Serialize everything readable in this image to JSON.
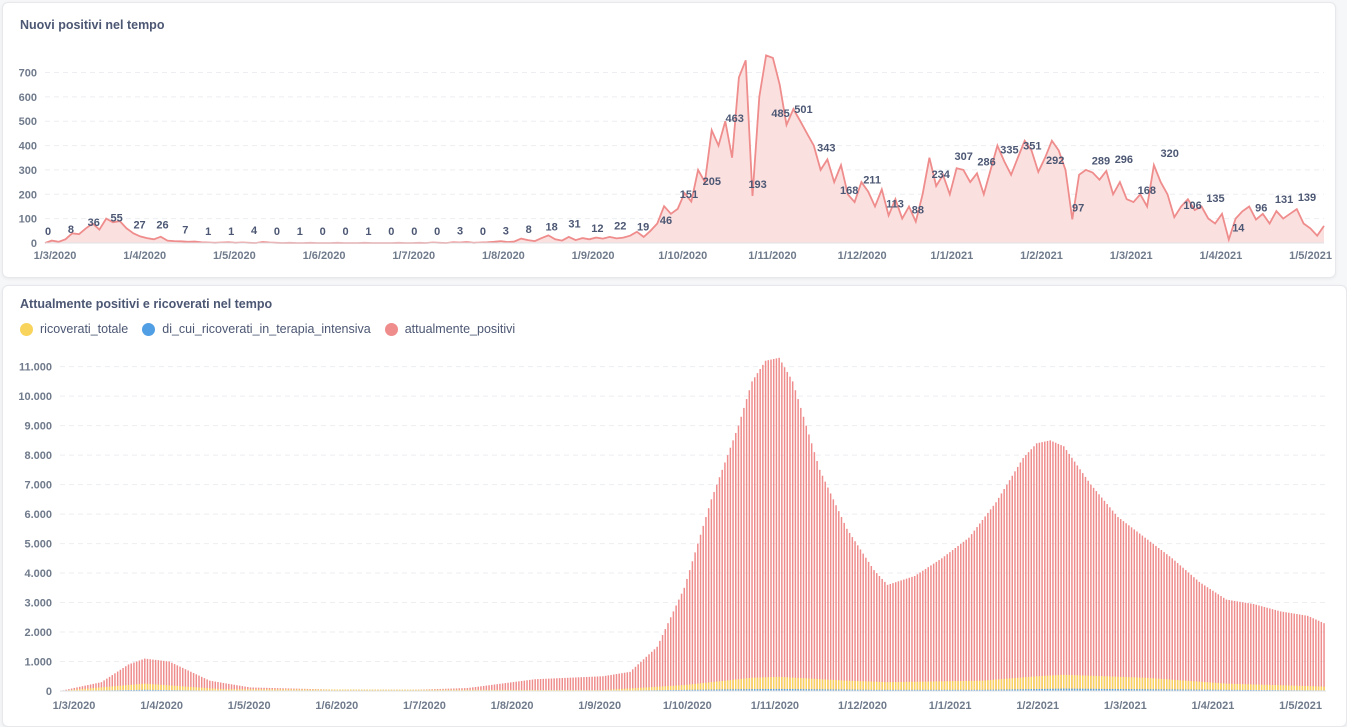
{
  "chart_data": [
    {
      "type": "area",
      "title": "Nuovi positivi nel tempo",
      "color": "#ef8c8c",
      "fill": "#fbe0e0",
      "yticks": [
        0,
        100,
        200,
        300,
        400,
        500,
        600,
        700
      ],
      "ylim": [
        0,
        780
      ],
      "xticks": [
        "1/3/2020",
        "1/4/2020",
        "1/5/2020",
        "1/6/2020",
        "1/7/2020",
        "1/8/2020",
        "1/9/2020",
        "1/10/2020",
        "1/11/2020",
        "1/12/2020",
        "1/1/2021",
        "1/2/2021",
        "1/3/2021",
        "1/4/2021",
        "1/5/2021"
      ],
      "series_values": [
        0,
        10,
        5,
        15,
        40,
        36,
        60,
        80,
        55,
        100,
        85,
        90,
        60,
        40,
        27,
        20,
        15,
        26,
        10,
        8,
        7,
        5,
        6,
        3,
        2,
        1,
        2,
        3,
        1,
        2,
        1,
        0,
        4,
        2,
        1,
        0,
        1,
        0,
        0,
        1,
        0,
        0,
        0,
        1,
        0,
        0,
        0,
        1,
        0,
        0,
        0,
        0,
        1,
        0,
        0,
        1,
        0,
        2,
        1,
        0,
        3,
        2,
        4,
        1,
        2,
        3,
        5,
        8,
        4,
        6,
        18,
        12,
        8,
        20,
        31,
        15,
        10,
        25,
        12,
        20,
        15,
        22,
        18,
        25,
        19,
        22,
        30,
        46,
        25,
        50,
        80,
        151,
        120,
        140,
        205,
        170,
        300,
        250,
        463,
        400,
        500,
        350,
        680,
        750,
        193,
        600,
        770,
        760,
        650,
        485,
        550,
        501,
        450,
        400,
        300,
        343,
        250,
        320,
        200,
        168,
        250,
        211,
        150,
        220,
        113,
        180,
        100,
        150,
        88,
        200,
        350,
        234,
        280,
        200,
        307,
        300,
        250,
        286,
        200,
        300,
        400,
        335,
        280,
        351,
        420,
        380,
        292,
        350,
        420,
        380,
        300,
        97,
        280,
        300,
        289,
        260,
        296,
        200,
        250,
        180,
        168,
        200,
        150,
        320,
        250,
        200,
        106,
        150,
        180,
        135,
        150,
        100,
        80,
        120,
        14,
        100,
        130,
        150,
        96,
        120,
        80,
        131,
        100,
        120,
        139,
        80,
        60,
        30,
        70
      ],
      "data_labels": [
        {
          "v": 0,
          "t": "0"
        },
        {
          "v": 8,
          "t": "8"
        },
        {
          "v": 36,
          "t": "36"
        },
        {
          "v": 55,
          "t": "55"
        },
        {
          "v": 27,
          "t": "27"
        },
        {
          "v": 26,
          "t": "26"
        },
        {
          "v": 7,
          "t": "7"
        },
        {
          "v": 1,
          "t": "1"
        },
        {
          "v": 1,
          "t": "1"
        },
        {
          "v": 4,
          "t": "4"
        },
        {
          "v": 0,
          "t": "0"
        },
        {
          "v": 1,
          "t": "1"
        },
        {
          "v": 0,
          "t": "0"
        },
        {
          "v": 0,
          "t": "0"
        },
        {
          "v": 1,
          "t": "1"
        },
        {
          "v": 0,
          "t": "0"
        },
        {
          "v": 0,
          "t": "0"
        },
        {
          "v": 0,
          "t": "0"
        },
        {
          "v": 3,
          "t": "3"
        },
        {
          "v": 0,
          "t": "0"
        },
        {
          "v": 3,
          "t": "3"
        },
        {
          "v": 8,
          "t": "8"
        },
        {
          "v": 18,
          "t": "18"
        },
        {
          "v": 31,
          "t": "31"
        },
        {
          "v": 12,
          "t": "12"
        },
        {
          "v": 22,
          "t": "22"
        },
        {
          "v": 19,
          "t": "19"
        },
        {
          "v": 46,
          "t": "46"
        },
        {
          "v": 151,
          "t": "151"
        },
        {
          "v": 205,
          "t": "205"
        },
        {
          "v": 463,
          "t": "463"
        },
        {
          "v": 193,
          "t": "193"
        },
        {
          "v": 485,
          "t": "485"
        },
        {
          "v": 501,
          "t": "501"
        },
        {
          "v": 343,
          "t": "343"
        },
        {
          "v": 168,
          "t": "168"
        },
        {
          "v": 211,
          "t": "211"
        },
        {
          "v": 113,
          "t": "113"
        },
        {
          "v": 88,
          "t": "88"
        },
        {
          "v": 234,
          "t": "234"
        },
        {
          "v": 307,
          "t": "307"
        },
        {
          "v": 286,
          "t": "286"
        },
        {
          "v": 335,
          "t": "335"
        },
        {
          "v": 351,
          "t": "351"
        },
        {
          "v": 292,
          "t": "292"
        },
        {
          "v": 97,
          "t": "97"
        },
        {
          "v": 289,
          "t": "289"
        },
        {
          "v": 296,
          "t": "296"
        },
        {
          "v": 168,
          "t": "168"
        },
        {
          "v": 320,
          "t": "320"
        },
        {
          "v": 106,
          "t": "106"
        },
        {
          "v": 135,
          "t": "135"
        },
        {
          "v": 14,
          "t": "14"
        },
        {
          "v": 96,
          "t": "96"
        },
        {
          "v": 131,
          "t": "131"
        },
        {
          "v": 139,
          "t": "139"
        }
      ]
    },
    {
      "type": "bar",
      "title": "Attualmente positivi e ricoverati nel tempo",
      "yticks": [
        "0",
        "1.000",
        "2.000",
        "3.000",
        "4.000",
        "5.000",
        "6.000",
        "7.000",
        "8.000",
        "9.000",
        "10.000",
        "11.000"
      ],
      "ylim": [
        0,
        11700
      ],
      "xticks": [
        "1/3/2020",
        "1/4/2020",
        "1/5/2020",
        "1/6/2020",
        "1/7/2020",
        "1/8/2020",
        "1/9/2020",
        "1/10/2020",
        "1/11/2020",
        "1/12/2020",
        "1/1/2021",
        "1/2/2021",
        "1/3/2021",
        "1/4/2021",
        "1/5/2021"
      ],
      "legend": [
        {
          "name": "ricoverati_totale",
          "color": "#f9d45c"
        },
        {
          "name": "di_cui_ricoverati_in_terapia_intensiva",
          "color": "#509ee3"
        },
        {
          "name": "attualmente_positivi",
          "color": "#ef8c8c"
        }
      ],
      "series": [
        {
          "name": "attualmente_positivi",
          "color": "#ef8c8c",
          "keypoints": [
            [
              0,
              5
            ],
            [
              15,
              300
            ],
            [
              25,
              900
            ],
            [
              31,
              1100
            ],
            [
              40,
              1000
            ],
            [
              55,
              350
            ],
            [
              70,
              120
            ],
            [
              100,
              50
            ],
            [
              130,
              40
            ],
            [
              150,
              100
            ],
            [
              175,
              400
            ],
            [
              200,
              500
            ],
            [
              210,
              650
            ],
            [
              220,
              1500
            ],
            [
              230,
              3500
            ],
            [
              240,
              6500
            ],
            [
              250,
              9000
            ],
            [
              255,
              10500
            ],
            [
              260,
              11200
            ],
            [
              265,
              11300
            ],
            [
              270,
              10500
            ],
            [
              280,
              7500
            ],
            [
              290,
              5500
            ],
            [
              300,
              4100
            ],
            [
              305,
              3600
            ],
            [
              315,
              3900
            ],
            [
              325,
              4500
            ],
            [
              335,
              5200
            ],
            [
              345,
              6400
            ],
            [
              355,
              7900
            ],
            [
              360,
              8400
            ],
            [
              365,
              8500
            ],
            [
              370,
              8300
            ],
            [
              380,
              7000
            ],
            [
              390,
              5900
            ],
            [
              400,
              5200
            ],
            [
              410,
              4500
            ],
            [
              420,
              3700
            ],
            [
              430,
              3100
            ],
            [
              440,
              2950
            ],
            [
              450,
              2700
            ],
            [
              460,
              2550
            ],
            [
              466,
              2300
            ]
          ]
        },
        {
          "name": "ricoverati_totale",
          "color": "#f9d45c",
          "keypoints": [
            [
              0,
              5
            ],
            [
              31,
              250
            ],
            [
              60,
              60
            ],
            [
              200,
              30
            ],
            [
              230,
              200
            ],
            [
              255,
              450
            ],
            [
              265,
              480
            ],
            [
              290,
              350
            ],
            [
              305,
              300
            ],
            [
              340,
              350
            ],
            [
              360,
              500
            ],
            [
              370,
              550
            ],
            [
              400,
              450
            ],
            [
              430,
              250
            ],
            [
              466,
              150
            ]
          ]
        },
        {
          "name": "di_cui_ricoverati_in_terapia_intensiva",
          "color": "#509ee3",
          "keypoints": [
            [
              0,
              2
            ],
            [
              31,
              40
            ],
            [
              60,
              10
            ],
            [
              200,
              5
            ],
            [
              250,
              60
            ],
            [
              265,
              70
            ],
            [
              300,
              40
            ],
            [
              340,
              40
            ],
            [
              370,
              80
            ],
            [
              400,
              60
            ],
            [
              430,
              40
            ],
            [
              466,
              20
            ]
          ]
        }
      ]
    }
  ]
}
